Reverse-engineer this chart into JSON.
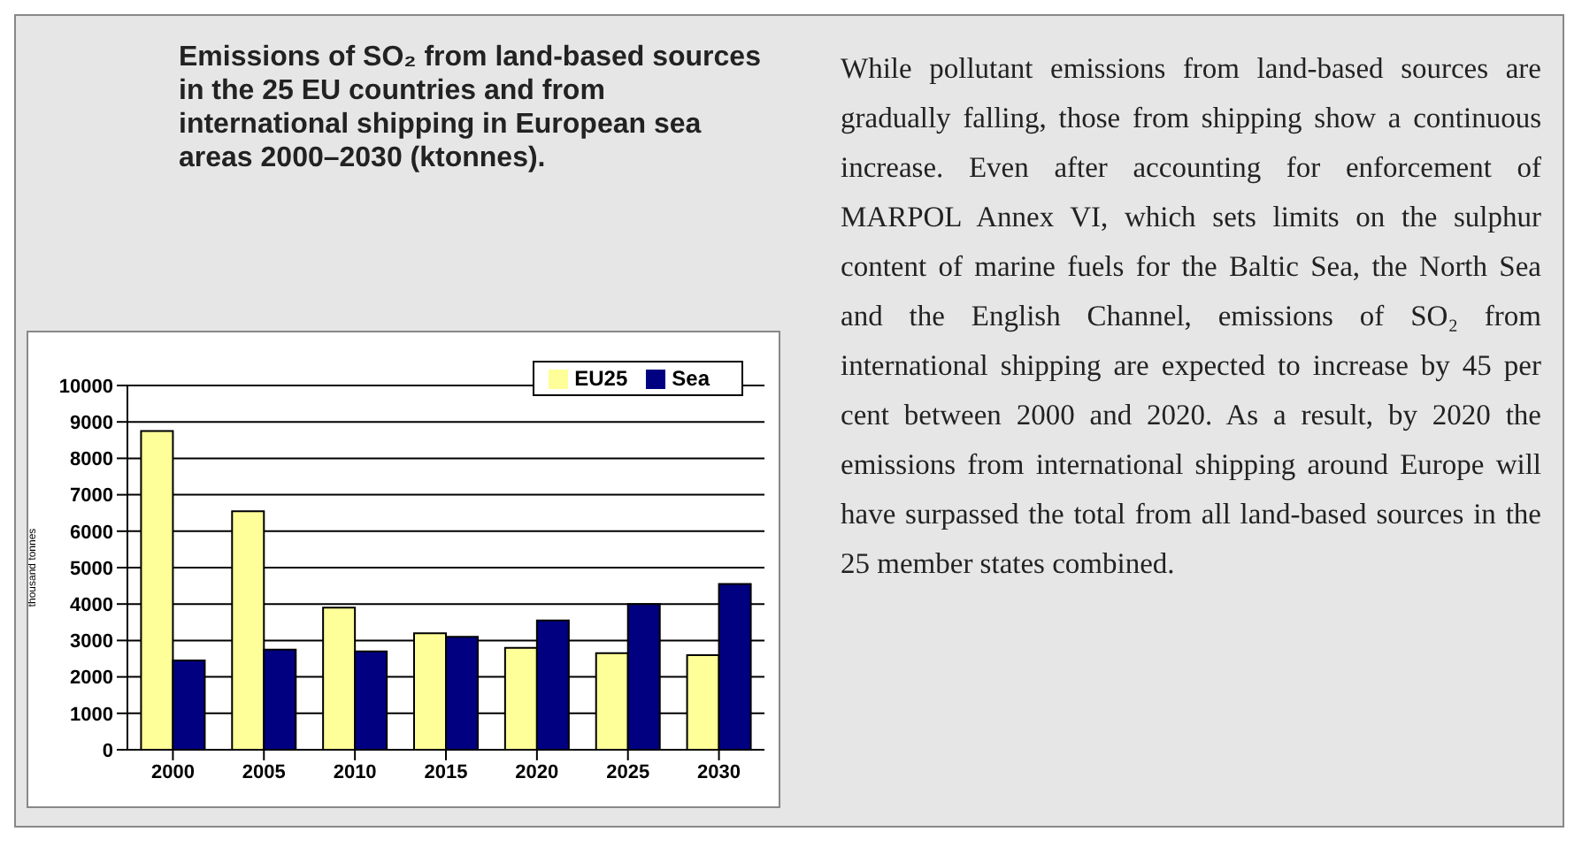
{
  "chart_data": {
    "type": "bar",
    "title": "Emissions of SO₂ from land-based sources in the 25 EU countries and from international shipping in European sea areas 2000–2030 (ktonnes).",
    "ylabel": "thousand tonnes",
    "categories": [
      "2000",
      "2005",
      "2010",
      "2015",
      "2020",
      "2025",
      "2030"
    ],
    "series": [
      {
        "name": "EU25",
        "color": "#ffff99",
        "values": [
          8750,
          6550,
          3900,
          3200,
          2800,
          2650,
          2600
        ]
      },
      {
        "name": "Sea",
        "color": "#000080",
        "values": [
          2450,
          2750,
          2700,
          3100,
          3550,
          4000,
          4550
        ]
      }
    ],
    "ylim": [
      0,
      10000
    ],
    "yticks": [
      0,
      1000,
      2000,
      3000,
      4000,
      5000,
      6000,
      7000,
      8000,
      9000,
      10000
    ],
    "grid": "y",
    "legend": "top right",
    "annotations": [
      "While pollutant emissions from land-based sources are gradually falling, those from shipping show a continuous increase. Even after accounting for enforcement of MARPOL Annex VI, which sets limits on the sulphur content of marine fuels for the Baltic Sea, the North Sea and the English Channel, emissions of SO₂ from international shipping are expected to increase by 45 per cent between 2000 and 2020. As a result, by 2020 the emissions from international shipping around Europe will have surpassed the total from all land-based sources in the 25 member states combined."
    ]
  }
}
